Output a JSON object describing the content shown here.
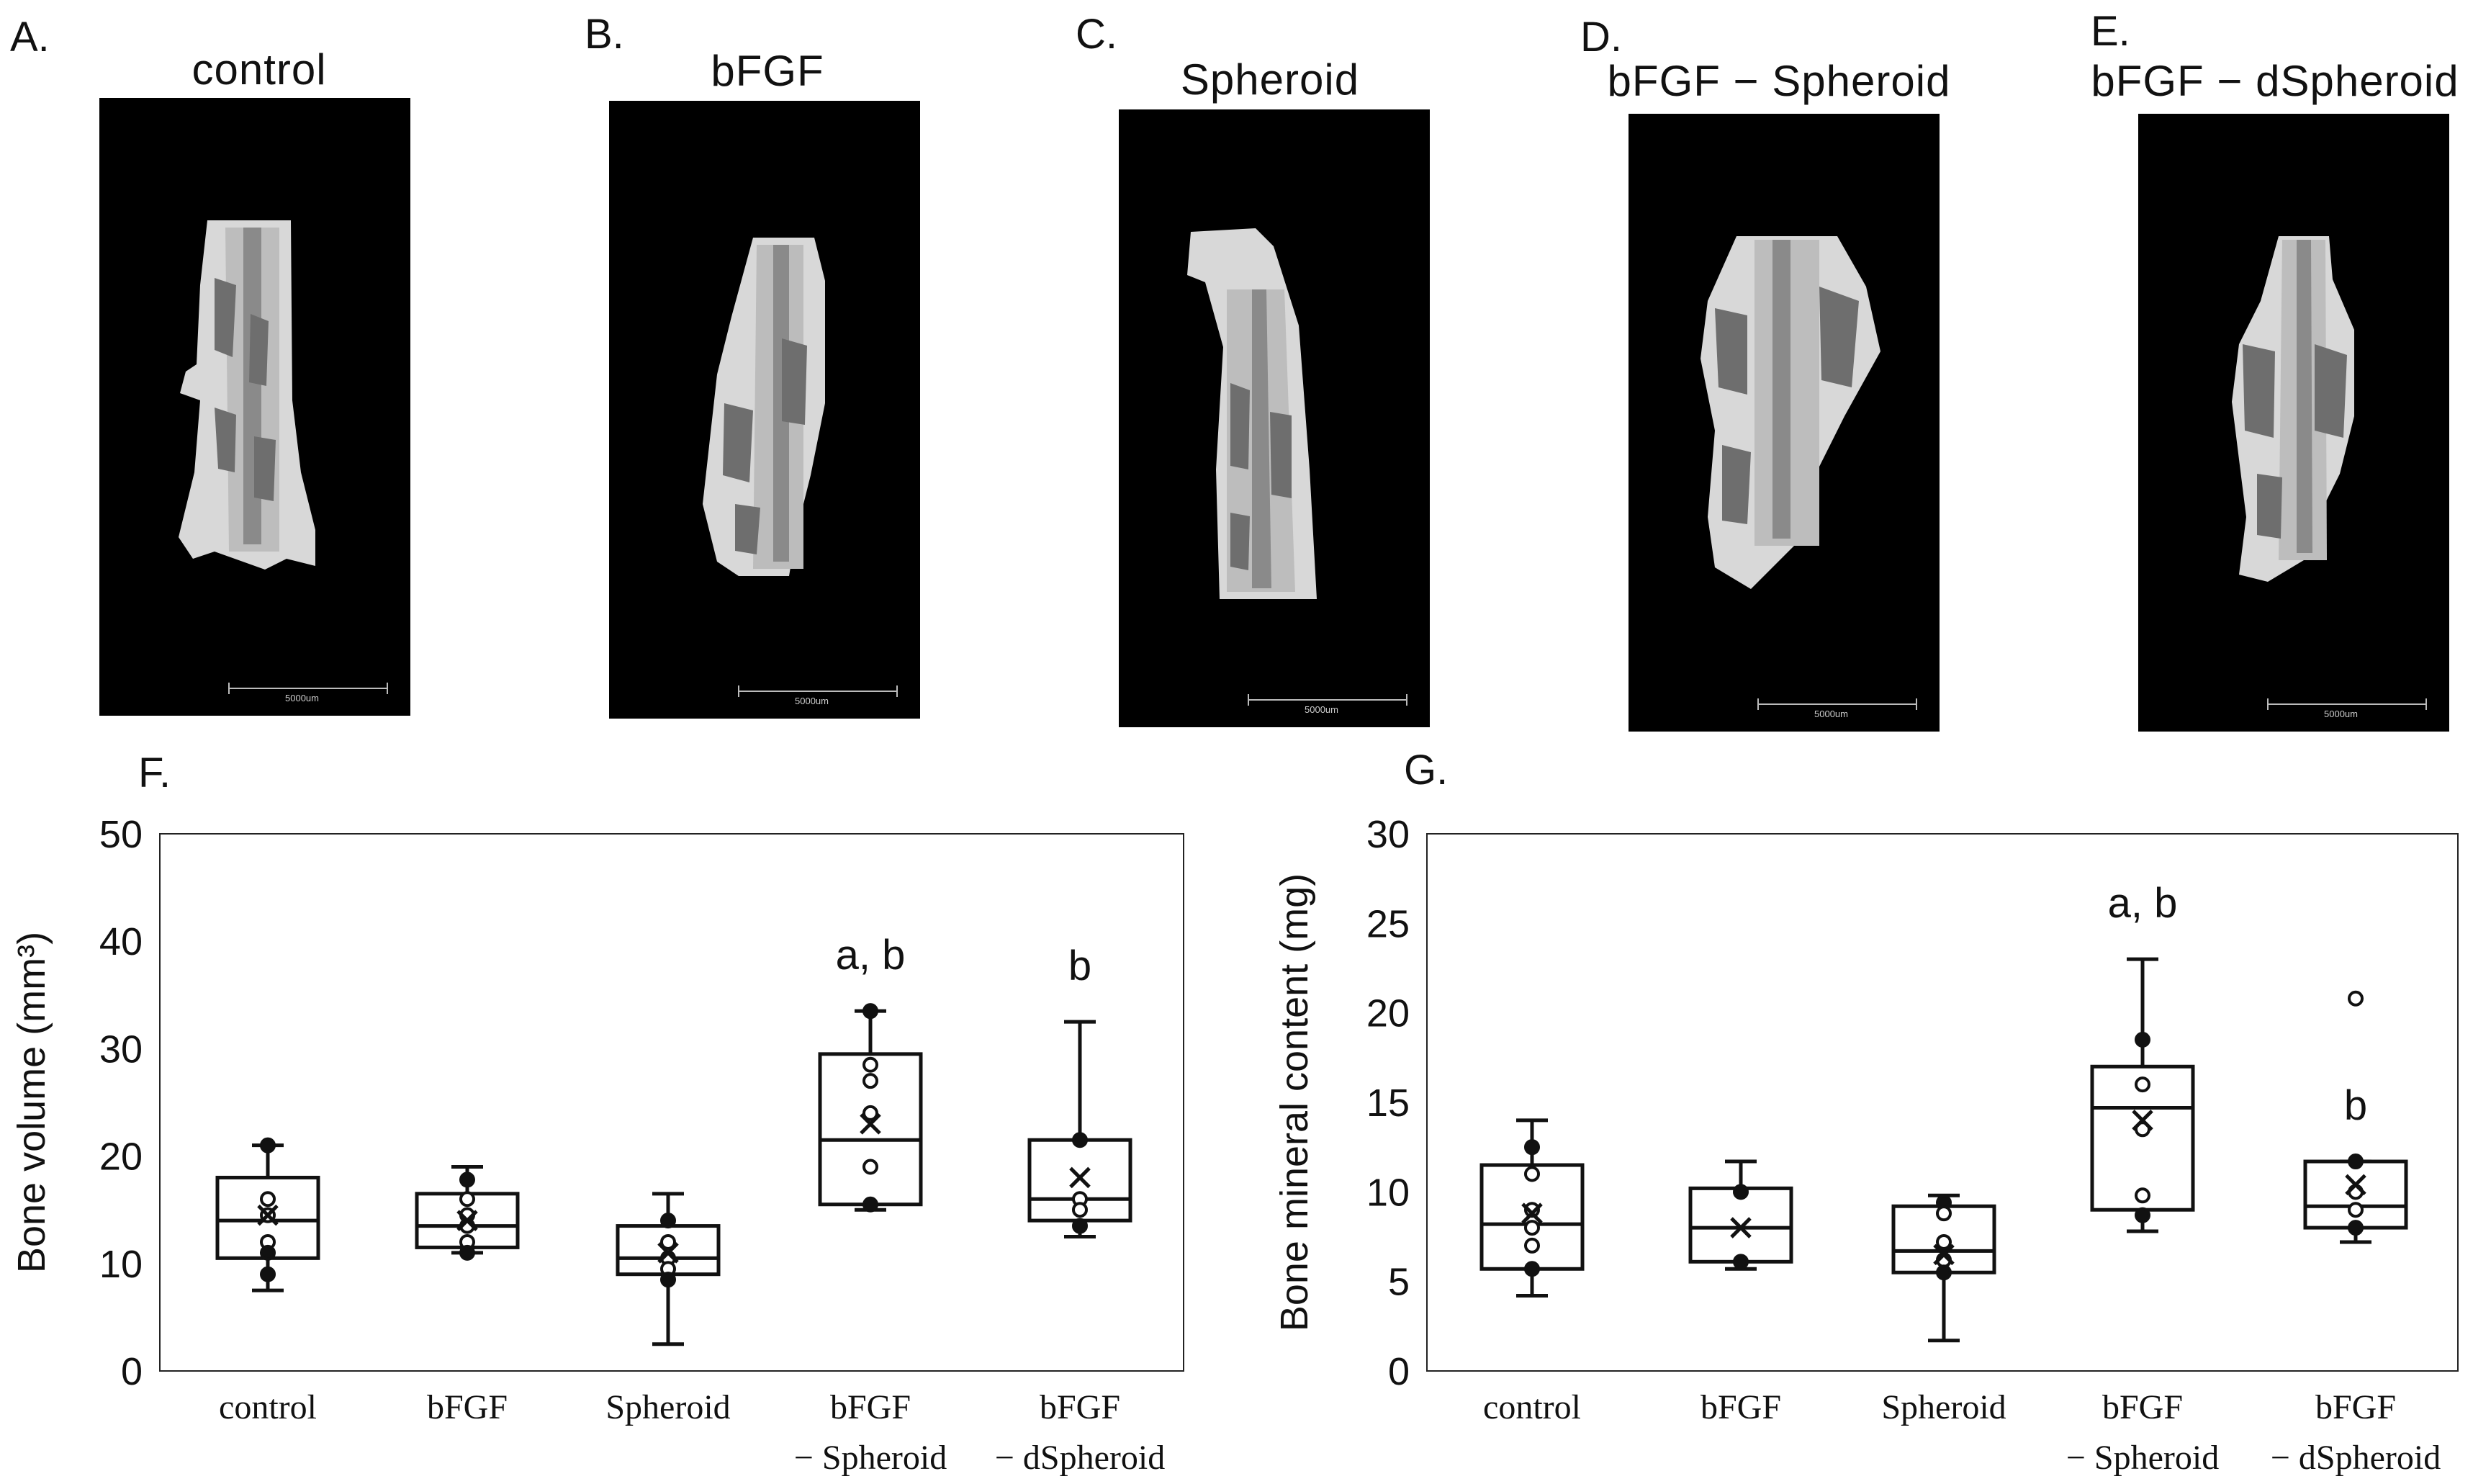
{
  "panels": [
    {
      "letter": "A.",
      "title": "control",
      "scale_label": "5000um"
    },
    {
      "letter": "B.",
      "title": "bFGF",
      "scale_label": "5000um"
    },
    {
      "letter": "C.",
      "title": "Spheroid",
      "scale_label": "5000um"
    },
    {
      "letter": "D.",
      "title": "bFGF − Spheroid",
      "scale_label": "5000um"
    },
    {
      "letter": "E.",
      "title": "bFGF − dSpheroid",
      "scale_label": "5000um"
    }
  ],
  "chart_data": [
    {
      "letter": "F.",
      "type": "box",
      "ylabel": "Bone volume (mm³)",
      "ylim": [
        0,
        50
      ],
      "yticks": [
        0,
        10,
        20,
        30,
        40,
        50
      ],
      "grid": false,
      "categories": [
        {
          "line1": "control",
          "line2": "",
          "min": 7.5,
          "q1": 10.5,
          "median": 14,
          "q3": 18,
          "max": 21,
          "mean": 14.5,
          "significance": "",
          "points": [
            {
              "v": 21,
              "f": true
            },
            {
              "v": 16,
              "f": false
            },
            {
              "v": 14.5,
              "f": false
            },
            {
              "v": 12,
              "f": false
            },
            {
              "v": 11,
              "f": true
            },
            {
              "v": 9,
              "f": true
            }
          ]
        },
        {
          "line1": "bFGF",
          "line2": "",
          "min": 11,
          "q1": 11.5,
          "median": 13.5,
          "q3": 16.5,
          "max": 19,
          "mean": 14,
          "significance": "",
          "points": [
            {
              "v": 17.8,
              "f": true
            },
            {
              "v": 16,
              "f": false
            },
            {
              "v": 14.5,
              "f": false
            },
            {
              "v": 13.5,
              "f": false
            },
            {
              "v": 12,
              "f": false
            },
            {
              "v": 11,
              "f": true
            }
          ]
        },
        {
          "line1": "Spheroid",
          "line2": "",
          "min": 2.5,
          "q1": 9,
          "median": 10.5,
          "q3": 13.5,
          "max": 16.5,
          "mean": 11,
          "significance": "",
          "points": [
            {
              "v": 14,
              "f": true
            },
            {
              "v": 12,
              "f": false
            },
            {
              "v": 10.5,
              "f": false
            },
            {
              "v": 9.5,
              "f": false
            },
            {
              "v": 8.5,
              "f": true
            }
          ]
        },
        {
          "line1": "bFGF",
          "line2": "− Spheroid",
          "min": 15,
          "q1": 15.5,
          "median": 21.5,
          "q3": 29.5,
          "max": 33.5,
          "mean": 23,
          "significance": "a, b",
          "points": [
            {
              "v": 33.5,
              "f": true
            },
            {
              "v": 28.5,
              "f": false
            },
            {
              "v": 27,
              "f": false
            },
            {
              "v": 24,
              "f": false
            },
            {
              "v": 19,
              "f": false
            },
            {
              "v": 15.5,
              "f": true
            }
          ]
        },
        {
          "line1": "bFGF",
          "line2": "− dSpheroid",
          "min": 12.5,
          "q1": 14,
          "median": 16,
          "q3": 21.5,
          "max": 32.5,
          "mean": 18,
          "significance": "b",
          "points": [
            {
              "v": 21.5,
              "f": true
            },
            {
              "v": 16,
              "f": false
            },
            {
              "v": 15,
              "f": false
            },
            {
              "v": 13.5,
              "f": true
            }
          ]
        }
      ]
    },
    {
      "letter": "G.",
      "type": "box",
      "ylabel": "Bone mineral content (mg)",
      "ylim": [
        0,
        30
      ],
      "yticks": [
        0,
        5,
        10,
        15,
        20,
        25,
        30
      ],
      "grid": false,
      "categories": [
        {
          "line1": "control",
          "line2": "",
          "min": 4.2,
          "q1": 5.7,
          "median": 8.2,
          "q3": 11.5,
          "max": 14,
          "mean": 8.8,
          "significance": "",
          "points": [
            {
              "v": 12.5,
              "f": true
            },
            {
              "v": 11,
              "f": false
            },
            {
              "v": 9,
              "f": false
            },
            {
              "v": 8,
              "f": false
            },
            {
              "v": 7,
              "f": false
            },
            {
              "v": 5.7,
              "f": true
            }
          ]
        },
        {
          "line1": "bFGF",
          "line2": "",
          "min": 5.7,
          "q1": 6.1,
          "median": 8,
          "q3": 10.2,
          "max": 11.7,
          "mean": 8,
          "significance": "",
          "points": [
            {
              "v": 10,
              "f": true
            },
            {
              "v": 6.1,
              "f": true
            }
          ]
        },
        {
          "line1": "Spheroid",
          "line2": "",
          "min": 1.7,
          "q1": 5.5,
          "median": 6.7,
          "q3": 9.2,
          "max": 9.8,
          "mean": 6.5,
          "significance": "",
          "points": [
            {
              "v": 9.4,
              "f": true
            },
            {
              "v": 8.8,
              "f": false
            },
            {
              "v": 7.2,
              "f": false
            },
            {
              "v": 6.2,
              "f": false
            },
            {
              "v": 5.5,
              "f": true
            }
          ]
        },
        {
          "line1": "bFGF",
          "line2": "− Spheroid",
          "min": 7.8,
          "q1": 9,
          "median": 14.7,
          "q3": 17,
          "max": 23,
          "mean": 14,
          "significance": "a, b",
          "points": [
            {
              "v": 18.5,
              "f": true
            },
            {
              "v": 16,
              "f": false
            },
            {
              "v": 13.5,
              "f": false
            },
            {
              "v": 9.8,
              "f": false
            },
            {
              "v": 8.7,
              "f": true
            }
          ]
        },
        {
          "line1": "bFGF",
          "line2": "− dSpheroid",
          "min": 7.2,
          "q1": 8,
          "median": 9.2,
          "q3": 11.7,
          "max": 11.7,
          "mean": 10.4,
          "significance": "b",
          "points": [
            {
              "v": 20.8,
              "f": false
            },
            {
              "v": 11.7,
              "f": true
            },
            {
              "v": 10,
              "f": false
            },
            {
              "v": 9,
              "f": false
            },
            {
              "v": 8,
              "f": true
            }
          ]
        }
      ]
    }
  ]
}
